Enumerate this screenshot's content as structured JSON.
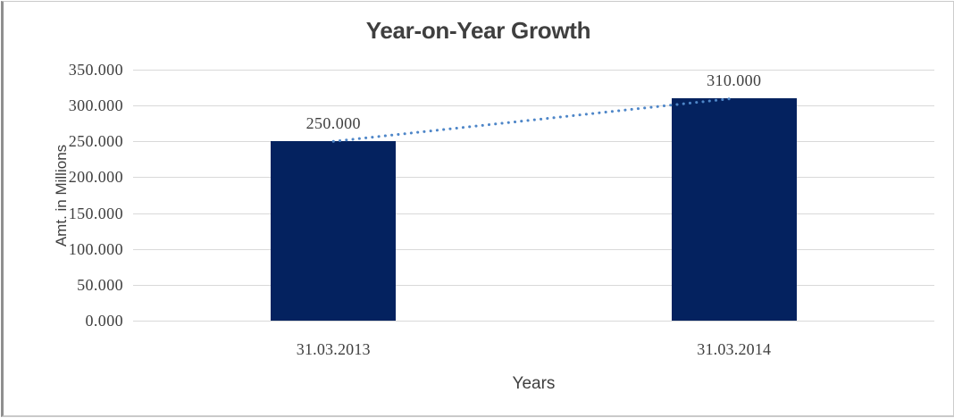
{
  "chart_data": {
    "type": "bar",
    "title": "Year-on-Year Growth",
    "xlabel": "Years",
    "ylabel": "Amt. in Millions",
    "categories": [
      "31.03.2013",
      "31.03.2014"
    ],
    "values": [
      250,
      310
    ],
    "data_labels": [
      "250.000",
      "310.000"
    ],
    "ylim": [
      0,
      350
    ],
    "ytick_step": 50,
    "ytick_labels": [
      "0.000",
      "50.000",
      "100.000",
      "150.000",
      "200.000",
      "250.000",
      "300.000",
      "350.000"
    ],
    "grid": "horizontal-major",
    "legend": "none",
    "trendline": {
      "style": "dotted",
      "points": [
        [
          0,
          250
        ],
        [
          1,
          310
        ]
      ]
    },
    "colors": {
      "bar": "#04225f",
      "trendline": "#4e86c8",
      "gridline": "#d9d9d9",
      "text": "#3f3f3f"
    }
  }
}
